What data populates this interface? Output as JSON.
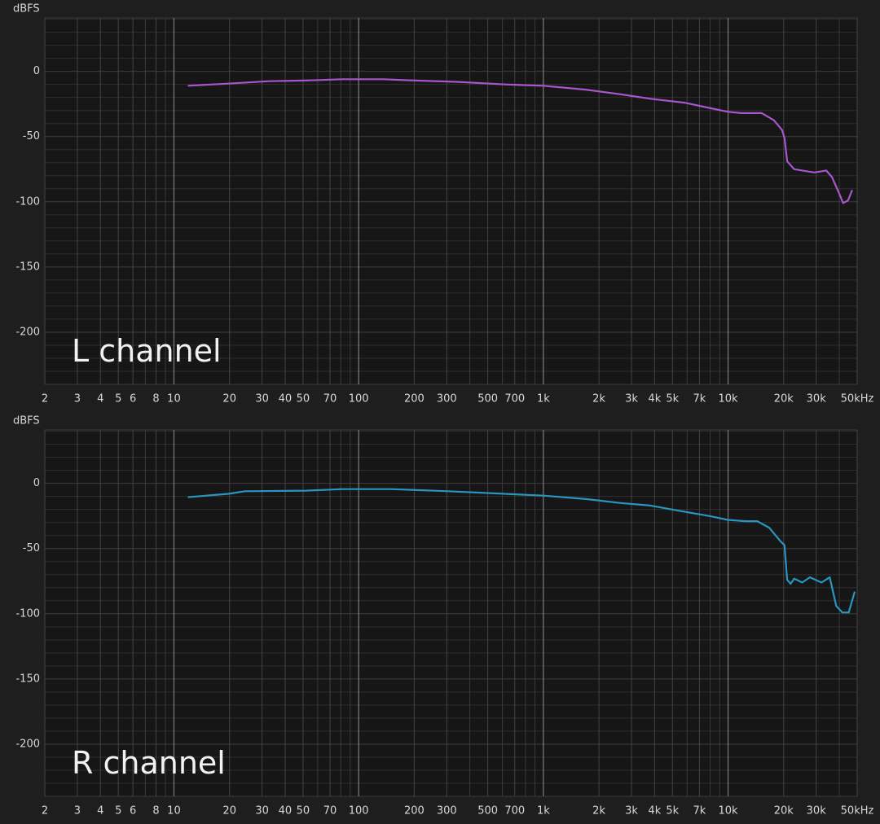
{
  "chart_data": [
    {
      "type": "line",
      "annotation": "L channel",
      "y_label": "dBFS",
      "xscale": "log",
      "grid": true,
      "xlim": [
        2,
        50000
      ],
      "ylim": [
        -240,
        41
      ],
      "xticks": [
        2,
        3,
        4,
        5,
        6,
        8,
        10,
        20,
        30,
        40,
        50,
        70,
        100,
        200,
        300,
        500,
        700,
        {
          "value": 1000,
          "label": "1k"
        },
        {
          "value": 2000,
          "label": "2k"
        },
        {
          "value": 3000,
          "label": "3k"
        },
        {
          "value": 4000,
          "label": "4k"
        },
        {
          "value": 5000,
          "label": "5k"
        },
        {
          "value": 7000,
          "label": "7k"
        },
        {
          "value": 10000,
          "label": "10k"
        },
        {
          "value": 20000,
          "label": "20k"
        },
        {
          "value": 30000,
          "label": "30k"
        },
        {
          "value": 50000,
          "label": "50kHz"
        }
      ],
      "x_minor_ticks": [
        7,
        9,
        60,
        80,
        90,
        400,
        600,
        800,
        900,
        6000,
        8000,
        9000,
        40000
      ],
      "x_major_grid": [
        10,
        100,
        1000,
        10000
      ],
      "yticks": [
        -200,
        -150,
        -100,
        -50,
        0
      ],
      "y_minor_ticks": [
        -230,
        -220,
        -210,
        -190,
        -180,
        -170,
        -160,
        -140,
        -130,
        -120,
        -110,
        -90,
        -80,
        -70,
        -60,
        -40,
        -30,
        -20,
        -10,
        10,
        20,
        30,
        40
      ],
      "series": [
        {
          "name": "L",
          "color": "#a955cf",
          "x": [
            11.9,
            19.7,
            32.8,
            51.7,
            81.7,
            135,
            203,
            338,
            620,
            1000,
            1700,
            2600,
            3800,
            5800,
            7900,
            10000,
            11800,
            15200,
            17700,
            19600,
            20200,
            20900,
            22800,
            25200,
            29300,
            34000,
            36500,
            39500,
            42000,
            44600,
            47000
          ],
          "values": [
            -11,
            -9.4,
            -7.5,
            -7,
            -6,
            -6,
            -7,
            -8,
            -10,
            -11,
            -14,
            -17.5,
            -21,
            -24,
            -28,
            -31,
            -32,
            -32,
            -37.5,
            -45,
            -51,
            -69,
            -75,
            -76,
            -77.5,
            -76,
            -81,
            -92,
            -101,
            -99,
            -91
          ]
        }
      ]
    },
    {
      "type": "line",
      "annotation": "R channel",
      "y_label": "dBFS",
      "xscale": "log",
      "grid": true,
      "xlim": [
        2,
        50000
      ],
      "ylim": [
        -240,
        41
      ],
      "xticks": [
        2,
        3,
        4,
        5,
        6,
        8,
        10,
        20,
        30,
        40,
        50,
        70,
        100,
        200,
        300,
        500,
        700,
        {
          "value": 1000,
          "label": "1k"
        },
        {
          "value": 2000,
          "label": "2k"
        },
        {
          "value": 3000,
          "label": "3k"
        },
        {
          "value": 4000,
          "label": "4k"
        },
        {
          "value": 5000,
          "label": "5k"
        },
        {
          "value": 7000,
          "label": "7k"
        },
        {
          "value": 10000,
          "label": "10k"
        },
        {
          "value": 20000,
          "label": "20k"
        },
        {
          "value": 30000,
          "label": "30k"
        },
        {
          "value": 50000,
          "label": "50kHz"
        }
      ],
      "x_minor_ticks": [
        7,
        9,
        60,
        80,
        90,
        400,
        600,
        800,
        900,
        6000,
        8000,
        9000,
        40000
      ],
      "x_major_grid": [
        10,
        100,
        1000,
        10000
      ],
      "yticks": [
        -200,
        -150,
        -100,
        -50,
        0
      ],
      "y_minor_ticks": [
        -230,
        -220,
        -210,
        -190,
        -180,
        -170,
        -160,
        -140,
        -130,
        -120,
        -110,
        -90,
        -80,
        -70,
        -60,
        -40,
        -30,
        -20,
        -10,
        10,
        20,
        30,
        40
      ],
      "series": [
        {
          "name": "R",
          "color": "#2896bf",
          "x": [
            11.9,
            19.7,
            24.2,
            51.7,
            81.7,
            150,
            306,
            620,
            1000,
            1700,
            2600,
            3800,
            5200,
            7900,
            10000,
            12400,
            14400,
            16700,
            19100,
            20200,
            20900,
            21800,
            22800,
            25200,
            27700,
            32000,
            35500,
            38500,
            41600,
            45000,
            48500
          ],
          "values": [
            -10.6,
            -8,
            -6,
            -5.6,
            -4.4,
            -4.4,
            -6,
            -8,
            -9.4,
            -12,
            -15,
            -17,
            -20.6,
            -25,
            -28,
            -29,
            -29,
            -34,
            -44,
            -47.5,
            -74,
            -77,
            -73,
            -76,
            -72,
            -76,
            -72,
            -94,
            -99,
            -99,
            -83
          ]
        }
      ]
    }
  ]
}
